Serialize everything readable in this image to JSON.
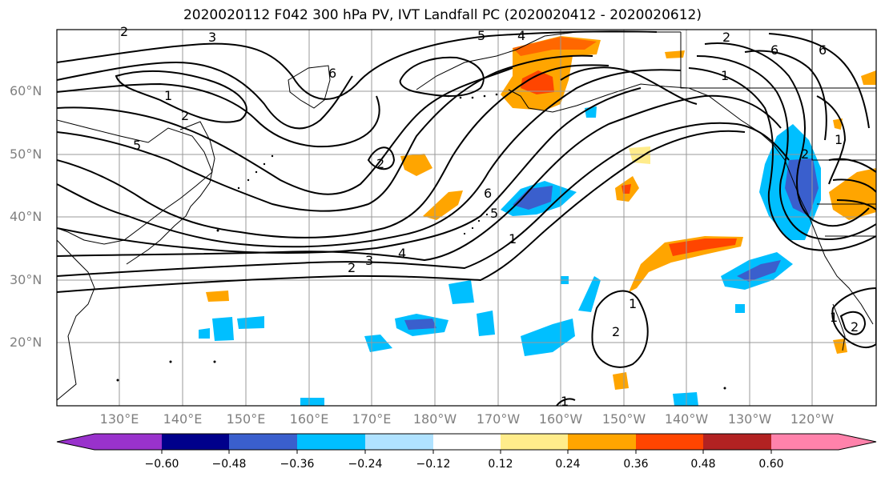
{
  "title": "2020020112 F042 300 hPa PV, IVT Landfall PC (2020020412 - 2020020612)",
  "lat_labels": [
    "60°N",
    "50°N",
    "40°N",
    "30°N",
    "20°N"
  ],
  "lon_labels": [
    "130°E",
    "140°E",
    "150°E",
    "160°E",
    "170°E",
    "180°W",
    "170°W",
    "160°W",
    "150°W",
    "140°W",
    "130°W",
    "120°W"
  ],
  "colorbar": {
    "ticks": [
      "−0.60",
      "−0.48",
      "−0.36",
      "−0.24",
      "−0.12",
      "0.12",
      "0.24",
      "0.36",
      "0.48",
      "0.60"
    ],
    "colors": [
      "#9932cc",
      "#00008b",
      "#3a5fcd",
      "#00bfff",
      "#b0e2ff",
      "#ffffff",
      "#ffec8b",
      "#ffa500",
      "#ff4500",
      "#b22222",
      "#ff82ab"
    ]
  },
  "contour_labels": [
    "1",
    "2",
    "3",
    "4",
    "5",
    "6"
  ],
  "shading_colors": {
    "neg_light": "#00bfff",
    "neg_mid": "#3a5fcd",
    "pos_light": "#ffec8b",
    "pos_mid": "#ffa500",
    "pos_strong": "#ff4500"
  }
}
